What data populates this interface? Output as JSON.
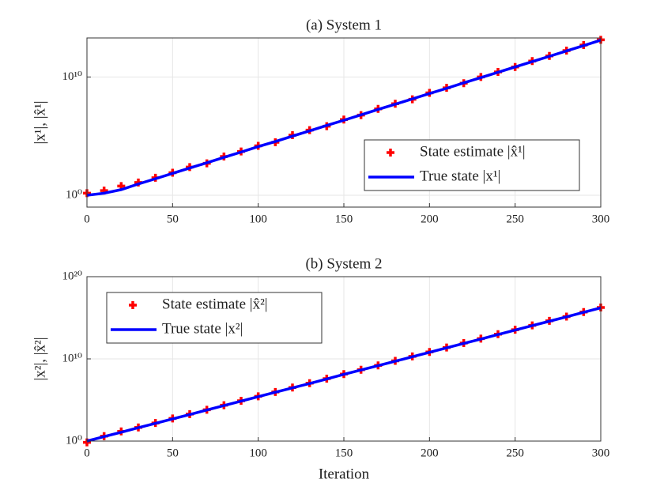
{
  "chart_data": [
    {
      "type": "line",
      "title": "(a) System 1",
      "ylabel": "|x¹|, |x̂¹|",
      "x": [
        0,
        10,
        20,
        30,
        40,
        50,
        60,
        70,
        80,
        90,
        100,
        110,
        120,
        130,
        140,
        150,
        160,
        170,
        180,
        190,
        200,
        210,
        220,
        230,
        240,
        250,
        260,
        270,
        280,
        290,
        300
      ],
      "series": [
        {
          "name": "State estimate |x̂¹|",
          "color": "#ff0000",
          "marker": "+",
          "values": [
            1.5,
            2.5,
            6,
            12,
            30,
            80,
            240,
            500,
            1900,
            5000,
            15000.0,
            30000.0,
            120000.0,
            320000.0,
            700000.0,
            2500000.0,
            6000000.0,
            20000000.0,
            55000000.0,
            130000000.0,
            450000000.0,
            1200000000.0,
            3000000000.0,
            10000000000.0,
            27000000000.0,
            70000000000.0,
            220000000000.0,
            600000000000.0,
            1700000000000.0,
            5000000000000.0,
            14000000000000.0
          ]
        },
        {
          "name": "True state |x¹|",
          "color": "#0000ff",
          "values": [
            1,
            1.5,
            3,
            9,
            25,
            71,
            200,
            560,
            1600,
            4500,
            13000.0,
            35000.0,
            100000.0,
            280000.0,
            800000.0,
            2200000.0,
            6300000.0,
            18000000.0,
            50000000.0,
            140000000.0,
            400000000.0,
            1100000000.0,
            3200000000.0,
            8900000000.0,
            25000000000.0,
            71000000000.0,
            200000000000.0,
            560000000000.0,
            1600000000000.0,
            4500000000000.0,
            13000000000000.0
          ]
        }
      ],
      "xlim": [
        0,
        300
      ],
      "xticks": [
        0,
        50,
        100,
        150,
        200,
        250,
        300
      ],
      "ylim": [
        0.1,
        20000000000000.0
      ],
      "yscale": "log",
      "yticks": [
        {
          "value": 1,
          "label": "10⁰"
        },
        {
          "value": 10000000000.0,
          "label": "10¹⁰"
        }
      ],
      "grid": true,
      "legend": "lower right"
    },
    {
      "type": "line",
      "title": "(b) System 2",
      "ylabel": "|x²|, |x̂²|",
      "xlabel": "Iteration",
      "x": [
        0,
        10,
        20,
        30,
        40,
        50,
        60,
        70,
        80,
        90,
        100,
        110,
        120,
        130,
        140,
        150,
        160,
        170,
        180,
        190,
        200,
        210,
        220,
        230,
        240,
        250,
        260,
        270,
        280,
        290,
        300
      ],
      "series": [
        {
          "name": "State estimate |x̂²|",
          "color": "#ff0000",
          "marker": "+",
          "values": [
            0.7,
            4,
            15,
            45,
            160,
            560,
            1900,
            6500,
            23000.0,
            80000.0,
            280000.0,
            950000.0,
            3300000.0,
            11000000.0,
            40000000.0,
            140000000.0,
            480000000.0,
            1600000000.0,
            5700000000.0,
            20000000000.0,
            70000000000.0,
            240000000000.0,
            830000000000.0,
            2900000000000.0,
            10000000000000.0,
            35000000000000.0,
            120000000000000.0,
            420000000000000.0,
            1400000000000000.0,
            5000000000000000.0,
            1.8e+16
          ]
        },
        {
          "name": "True state |x²|",
          "color": "#0000ff",
          "values": [
            1,
            3.5,
            12,
            42,
            145,
            500,
            1700,
            6000,
            21000.0,
            72000.0,
            250000.0,
            870000.0,
            3000000.0,
            10000000.0,
            36000000.0,
            130000000.0,
            440000000.0,
            1500000000.0,
            5200000000.0,
            18000000000.0,
            63000000000.0,
            220000000000.0,
            760000000000.0,
            2600000000000.0,
            9100000000000.0,
            32000000000000.0,
            110000000000000.0,
            380000000000000.0,
            1300000000000000.0,
            4600000000000000.0,
            1.6e+16
          ]
        }
      ],
      "xlim": [
        0,
        300
      ],
      "xticks": [
        0,
        50,
        100,
        150,
        200,
        250,
        300
      ],
      "ylim": [
        1,
        1e+20
      ],
      "yscale": "log",
      "yticks": [
        {
          "value": 1,
          "label": "10⁰"
        },
        {
          "value": 10000000000.0,
          "label": "10¹⁰"
        },
        {
          "value": 1e+20,
          "label": "10²⁰"
        }
      ],
      "grid": true,
      "legend": "upper left"
    }
  ]
}
